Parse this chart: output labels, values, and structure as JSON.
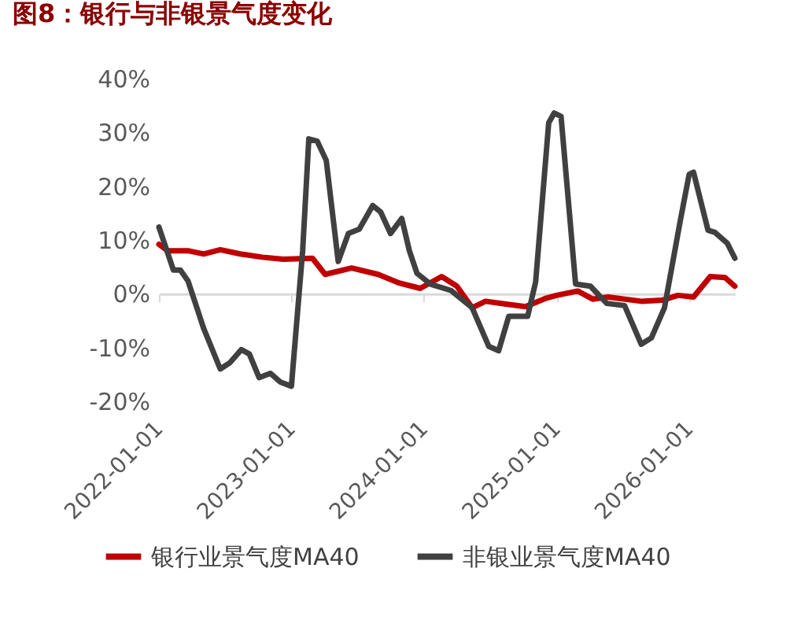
{
  "chart_data": {
    "type": "line",
    "title": "图8：银行与非银景气度变化",
    "xlim": [
      "2022-01-01",
      "2026-05-07"
    ],
    "xticks": [
      "2022-01-01",
      "2023-01-01",
      "2024-01-01",
      "2025-01-01",
      "2026-01-01"
    ],
    "ylim": [
      -20,
      40
    ],
    "yticks": [
      {
        "value": -20,
        "label": "-20%"
      },
      {
        "value": -10,
        "label": "-10%"
      },
      {
        "value": 0,
        "label": "0%"
      },
      {
        "value": 10,
        "label": "10%"
      },
      {
        "value": 20,
        "label": "20%"
      },
      {
        "value": 30,
        "label": "30%"
      },
      {
        "value": 40,
        "label": "40%"
      }
    ],
    "legend": "bottom",
    "marker": "none",
    "line_style": "solid",
    "series": [
      {
        "name": "银行业景气度MA40",
        "color": "#c00000",
        "x": [
          "2022-01-01",
          "2022-01-25",
          "2022-03-22",
          "2022-05-04",
          "2022-06-19",
          "2022-08-13",
          "2022-10-13",
          "2022-12-10",
          "2023-02-28",
          "2023-04-04",
          "2023-06-16",
          "2023-08-28",
          "2023-10-25",
          "2023-12-22",
          "2024-02-19",
          "2024-04-01",
          "2024-05-13",
          "2024-06-19",
          "2024-08-10",
          "2024-10-07",
          "2024-12-04",
          "2025-01-01",
          "2025-02-28",
          "2025-04-10",
          "2025-05-22",
          "2025-08-22",
          "2025-10-19",
          "2025-12-01",
          "2026-01-13",
          "2026-02-28",
          "2026-04-10",
          "2026-05-07"
        ],
        "values": [
          9.2,
          8,
          8,
          7.4,
          8.2,
          7.4,
          6.8,
          6.4,
          6.6,
          3.6,
          4.8,
          3.6,
          2,
          1,
          3.2,
          1.4,
          -2.6,
          -1.4,
          -1.9,
          -2.4,
          -0.8,
          -0.3,
          0.5,
          -1,
          -0.6,
          -1.4,
          -1.2,
          -0.3,
          -0.6,
          3.2,
          3,
          1.4
        ]
      },
      {
        "name": "非银业景气度MA40",
        "color": "#404040",
        "x": [
          "2022-01-01",
          "2022-02-10",
          "2022-03-01",
          "2022-03-22",
          "2022-05-04",
          "2022-06-19",
          "2022-07-16",
          "2022-08-16",
          "2022-09-07",
          "2022-10-04",
          "2022-11-04",
          "2022-12-01",
          "2023-01-01",
          "2023-02-01",
          "2023-02-18",
          "2023-03-13",
          "2023-04-07",
          "2023-05-10",
          "2023-06-07",
          "2023-07-07",
          "2023-08-13",
          "2023-09-04",
          "2023-10-01",
          "2023-11-01",
          "2023-11-22",
          "2023-12-13",
          "2024-01-19",
          "2024-03-16",
          "2024-05-13",
          "2024-06-28",
          "2024-07-25",
          "2024-08-22",
          "2024-10-13",
          "2024-11-04",
          "2024-12-10",
          "2024-12-25",
          "2025-01-13",
          "2025-02-22",
          "2025-04-04",
          "2025-05-19",
          "2025-07-07",
          "2025-08-22",
          "2025-09-19",
          "2025-10-25",
          "2025-12-07",
          "2026-01-01",
          "2026-01-13",
          "2026-02-22",
          "2026-03-13",
          "2026-04-16",
          "2026-05-07"
        ],
        "values": [
          12.4,
          4.4,
          4.4,
          2.4,
          -6.4,
          -14,
          -12.8,
          -10.4,
          -11.2,
          -15.6,
          -14.8,
          -16.4,
          -17.2,
          8,
          28.8,
          28.4,
          24.8,
          6,
          11.2,
          12,
          16.4,
          15.2,
          11.2,
          14,
          8,
          3.8,
          1.8,
          0.6,
          -2.6,
          -9.8,
          -10.6,
          -4.2,
          -4.2,
          2.2,
          31.8,
          33.6,
          33,
          1.8,
          1.4,
          -1.8,
          -2.2,
          -9.4,
          -8.2,
          -2.6,
          13.4,
          22.2,
          22.6,
          11.8,
          11.4,
          9.4,
          6.6
        ]
      }
    ]
  }
}
